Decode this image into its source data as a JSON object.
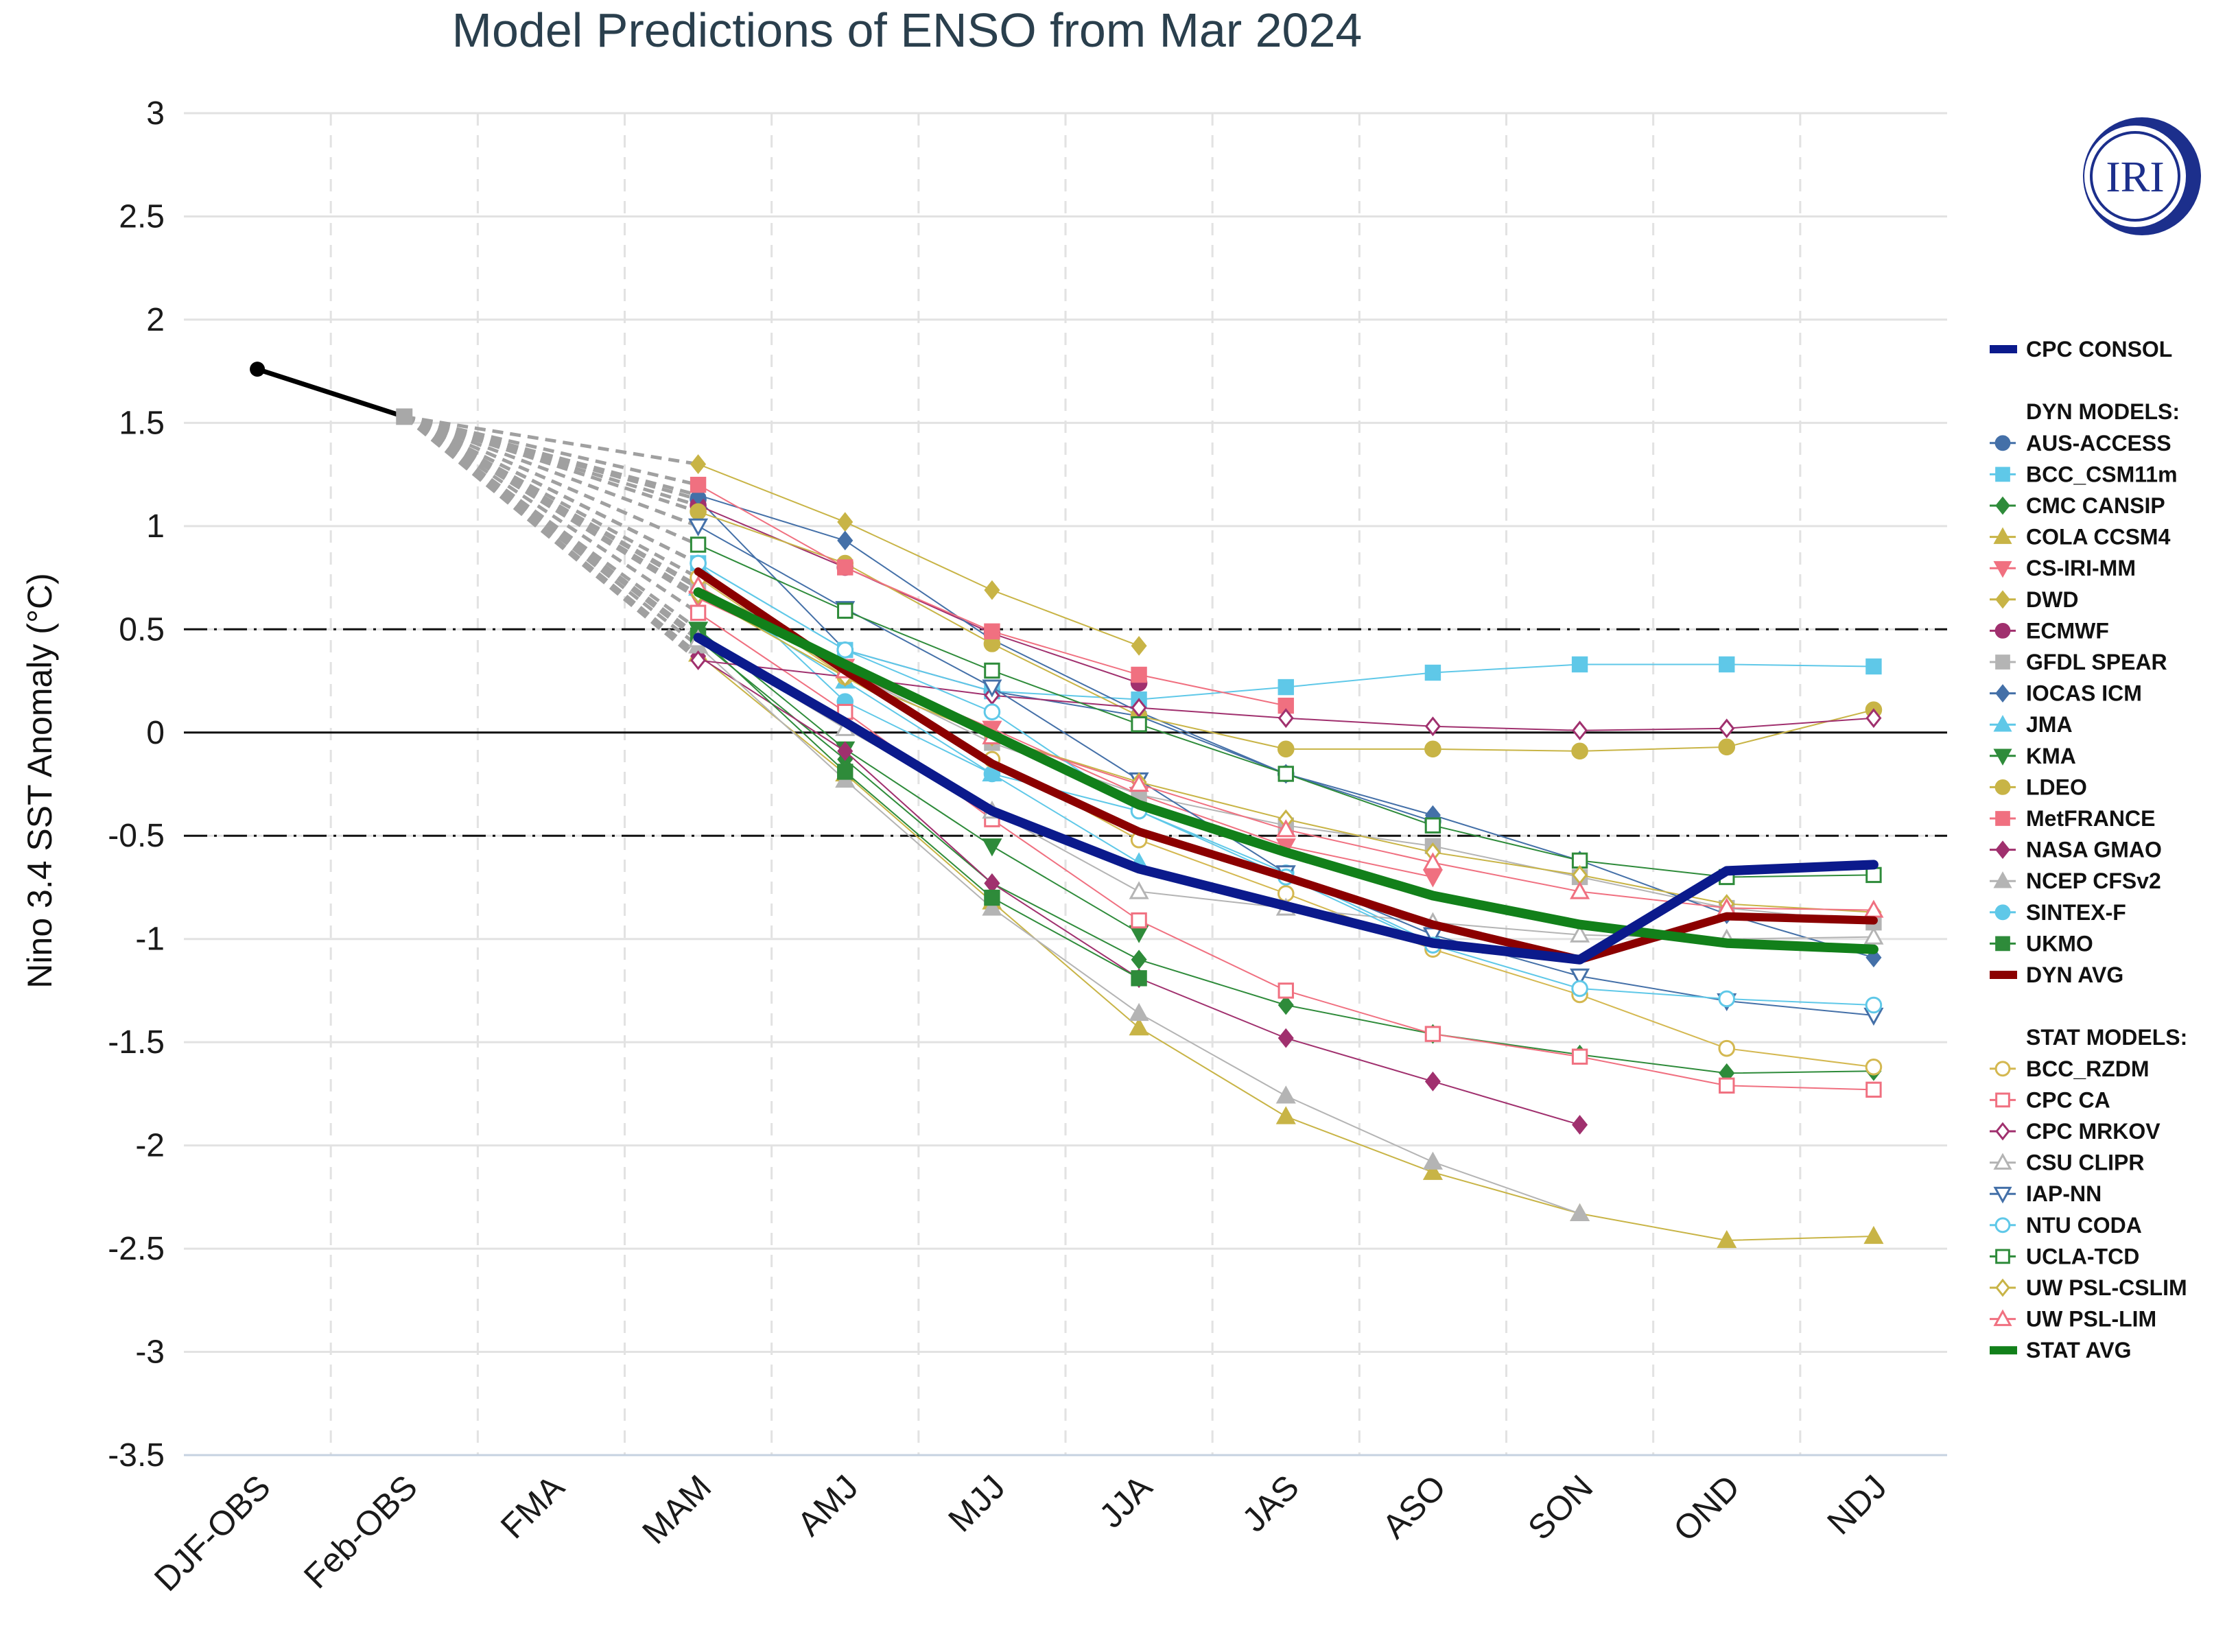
{
  "chart_data": {
    "type": "line",
    "title": "Model Predictions of ENSO from Mar 2024",
    "ylabel": "Nino 3.4 SST Anomaly (°C)",
    "xlabel": "",
    "categories": [
      "DJF-OBS",
      "Feb-OBS",
      "FMA",
      "MAM",
      "AMJ",
      "MJJ",
      "JJA",
      "JAS",
      "ASO",
      "SON",
      "OND",
      "NDJ"
    ],
    "ylim": [
      -3.5,
      3
    ],
    "yticks": [
      3,
      2.5,
      2,
      1.5,
      1,
      0.5,
      0,
      -0.5,
      -1,
      -1.5,
      -2,
      -2.5,
      -3,
      -3.5
    ],
    "ytick_labels": [
      "3",
      "2.5",
      "2",
      "1.5",
      "1",
      "0.5",
      "0",
      "-0.5",
      "-1",
      "-1.5",
      "-2",
      "-2.5",
      "-3",
      "-3.5"
    ],
    "reference_lines": [
      {
        "y": 0,
        "style": "solid"
      },
      {
        "y": 0.5,
        "style": "dash-dot"
      },
      {
        "y": -0.5,
        "style": "dash-dot"
      }
    ],
    "grid": true,
    "logo": "IRI",
    "observed": {
      "name": "Observed",
      "x_index": [
        0,
        1
      ],
      "values": [
        1.76,
        1.53
      ],
      "color": "#000000"
    },
    "legend_groups": [
      {
        "heading": "",
        "items": [
          "CPC CONSOL"
        ]
      },
      {
        "heading": "DYN MODELS:",
        "items": [
          "AUS-ACCESS",
          "BCC_CSM11m",
          "CMC CANSIP",
          "COLA CCSM4",
          "CS-IRI-MM",
          "DWD",
          "ECMWF",
          "GFDL SPEAR",
          "IOCAS ICM",
          "JMA",
          "KMA",
          "LDEO",
          "MetFRANCE",
          "NASA GMAO",
          "NCEP CFSv2",
          "SINTEX-F",
          "UKMO",
          "DYN AVG"
        ]
      },
      {
        "heading": "STAT MODELS:",
        "items": [
          "BCC_RZDM",
          "CPC CA",
          "CPC MRKOV",
          "CSU CLIPR",
          "IAP-NN",
          "NTU CODA",
          "UCLA-TCD",
          "UW PSL-CSLIM",
          "UW PSL-LIM",
          "STAT AVG"
        ]
      }
    ],
    "series": [
      {
        "name": "AUS-ACCESS",
        "group": "dyn",
        "color": "#4470a8",
        "marker": "circle",
        "filled": true,
        "width": 2,
        "values": [
          null,
          null,
          null,
          1.13,
          0.4,
          0.2,
          0.08,
          -0.2,
          -0.43,
          null,
          null,
          null
        ]
      },
      {
        "name": "BCC_CSM11m",
        "group": "dyn",
        "color": "#5fc8e8",
        "marker": "square",
        "filled": true,
        "width": 2,
        "values": [
          null,
          null,
          null,
          0.82,
          0.4,
          0.2,
          0.16,
          0.22,
          0.29,
          0.33,
          0.33,
          0.32
        ]
      },
      {
        "name": "CMC CANSIP",
        "group": "dyn",
        "color": "#2e8b3a",
        "marker": "diamond",
        "filled": true,
        "width": 2,
        "values": [
          null,
          null,
          null,
          0.45,
          -0.13,
          -0.73,
          -1.1,
          -1.32,
          -1.46,
          -1.56,
          -1.65,
          -1.64
        ]
      },
      {
        "name": "COLA CCSM4",
        "group": "dyn",
        "color": "#c8b446",
        "marker": "triangle",
        "filled": true,
        "width": 2,
        "values": [
          null,
          null,
          null,
          0.38,
          -0.2,
          -0.82,
          -1.43,
          -1.86,
          -2.13,
          -2.33,
          -2.46,
          -2.44
        ]
      },
      {
        "name": "CS-IRI-MM",
        "group": "dyn",
        "color": "#f07080",
        "marker": "triangle-down",
        "filled": true,
        "width": 2,
        "values": [
          null,
          null,
          null,
          0.65,
          0.32,
          0.02,
          -0.3,
          -0.55,
          -0.7,
          null,
          null,
          null
        ]
      },
      {
        "name": "DWD",
        "group": "dyn",
        "color": "#c8b446",
        "marker": "diamond",
        "filled": true,
        "width": 2,
        "values": [
          null,
          null,
          null,
          1.3,
          1.02,
          0.69,
          0.42,
          null,
          null,
          null,
          null,
          null
        ]
      },
      {
        "name": "ECMWF",
        "group": "dyn",
        "color": "#a0306e",
        "marker": "circle",
        "filled": true,
        "width": 2,
        "values": [
          null,
          null,
          null,
          1.1,
          0.8,
          0.48,
          0.24,
          null,
          null,
          null,
          null,
          null
        ]
      },
      {
        "name": "GFDL SPEAR",
        "group": "dyn",
        "color": "#b4b4b4",
        "marker": "square",
        "filled": true,
        "width": 2,
        "values": [
          null,
          null,
          null,
          0.7,
          0.3,
          -0.05,
          -0.3,
          -0.45,
          -0.55,
          -0.7,
          -0.85,
          -0.92
        ]
      },
      {
        "name": "IOCAS ICM",
        "group": "dyn",
        "color": "#4470a8",
        "marker": "diamond",
        "filled": true,
        "width": 2,
        "values": [
          null,
          null,
          null,
          1.15,
          0.93,
          0.45,
          0.1,
          -0.2,
          -0.4,
          -0.62,
          -0.88,
          -1.09
        ]
      },
      {
        "name": "JMA",
        "group": "dyn",
        "color": "#5fc8e8",
        "marker": "triangle",
        "filled": true,
        "width": 2,
        "values": [
          null,
          null,
          null,
          0.7,
          0.25,
          -0.2,
          -0.63,
          null,
          null,
          null,
          null,
          null
        ]
      },
      {
        "name": "KMA",
        "group": "dyn",
        "color": "#2e8b3a",
        "marker": "triangle-down",
        "filled": true,
        "width": 2,
        "values": [
          null,
          null,
          null,
          0.5,
          -0.08,
          -0.55,
          -0.97,
          null,
          null,
          null,
          null,
          null
        ]
      },
      {
        "name": "LDEO",
        "group": "dyn",
        "color": "#c8b446",
        "marker": "circle",
        "filled": true,
        "width": 2,
        "values": [
          null,
          null,
          null,
          1.07,
          0.82,
          0.43,
          0.08,
          -0.08,
          -0.08,
          -0.09,
          -0.07,
          0.11
        ]
      },
      {
        "name": "MetFRANCE",
        "group": "dyn",
        "color": "#f07080",
        "marker": "square",
        "filled": true,
        "width": 2,
        "values": [
          null,
          null,
          null,
          1.2,
          0.8,
          0.49,
          0.28,
          0.13,
          null,
          null,
          null,
          null
        ]
      },
      {
        "name": "NASA GMAO",
        "group": "dyn",
        "color": "#a0306e",
        "marker": "diamond",
        "filled": true,
        "width": 2,
        "values": [
          null,
          null,
          null,
          0.37,
          -0.09,
          -0.73,
          -1.19,
          -1.48,
          -1.69,
          -1.9,
          null,
          null
        ]
      },
      {
        "name": "NCEP CFSv2",
        "group": "dyn",
        "color": "#b4b4b4",
        "marker": "triangle",
        "filled": true,
        "width": 2,
        "values": [
          null,
          null,
          null,
          0.42,
          -0.23,
          -0.85,
          -1.36,
          -1.76,
          -2.08,
          -2.33,
          null,
          null
        ]
      },
      {
        "name": "SINTEX-F",
        "group": "dyn",
        "color": "#5fc8e8",
        "marker": "circle",
        "filled": true,
        "width": 2,
        "values": [
          null,
          null,
          null,
          0.82,
          0.15,
          -0.2,
          -0.38,
          -0.68,
          -1.02,
          null,
          null,
          null
        ]
      },
      {
        "name": "UKMO",
        "group": "dyn",
        "color": "#2e8b3a",
        "marker": "square",
        "filled": true,
        "width": 2,
        "values": [
          null,
          null,
          null,
          0.47,
          -0.19,
          -0.8,
          -1.19,
          null,
          null,
          null,
          null,
          null
        ]
      },
      {
        "name": "BCC_RZDM",
        "group": "stat",
        "color": "#d4b850",
        "marker": "circle",
        "filled": false,
        "width": 2,
        "values": [
          null,
          null,
          null,
          0.75,
          0.27,
          -0.13,
          -0.52,
          -0.78,
          -1.05,
          -1.27,
          -1.53,
          -1.62
        ]
      },
      {
        "name": "CPC CA",
        "group": "stat",
        "color": "#f07080",
        "marker": "square",
        "filled": false,
        "width": 2,
        "values": [
          null,
          null,
          null,
          0.58,
          0.1,
          -0.42,
          -0.91,
          -1.25,
          -1.46,
          -1.57,
          -1.71,
          -1.73
        ]
      },
      {
        "name": "CPC MRKOV",
        "group": "stat",
        "color": "#a0306e",
        "marker": "diamond",
        "filled": false,
        "width": 2,
        "values": [
          null,
          null,
          null,
          0.35,
          0.27,
          0.18,
          0.12,
          0.07,
          0.03,
          0.01,
          0.02,
          0.07
        ]
      },
      {
        "name": "CSU CLIPR",
        "group": "stat",
        "color": "#b4b4b4",
        "marker": "triangle",
        "filled": false,
        "width": 2,
        "values": [
          null,
          null,
          null,
          0.45,
          0.02,
          -0.38,
          -0.77,
          -0.85,
          -0.92,
          -0.98,
          -1.0,
          -0.99
        ]
      },
      {
        "name": "IAP-NN",
        "group": "stat",
        "color": "#4470a8",
        "marker": "triangle-down",
        "filled": false,
        "width": 2,
        "values": [
          null,
          null,
          null,
          1.0,
          0.6,
          0.22,
          -0.23,
          -0.68,
          -0.98,
          -1.18,
          -1.3,
          -1.37
        ]
      },
      {
        "name": "NTU CODA",
        "group": "stat",
        "color": "#5fc8e8",
        "marker": "circle",
        "filled": false,
        "width": 2,
        "values": [
          null,
          null,
          null,
          0.82,
          0.4,
          0.1,
          -0.38,
          -0.7,
          -1.03,
          -1.24,
          -1.29,
          -1.32
        ]
      },
      {
        "name": "UCLA-TCD",
        "group": "stat",
        "color": "#2e8b3a",
        "marker": "square",
        "filled": false,
        "width": 2,
        "values": [
          null,
          null,
          null,
          0.91,
          0.59,
          0.3,
          0.04,
          -0.2,
          -0.45,
          -0.62,
          -0.7,
          -0.69
        ]
      },
      {
        "name": "UW PSL-CSLIM",
        "group": "stat",
        "color": "#c8b446",
        "marker": "diamond",
        "filled": false,
        "width": 2,
        "values": [
          null,
          null,
          null,
          0.67,
          0.27,
          -0.02,
          -0.24,
          -0.42,
          -0.58,
          -0.69,
          -0.83,
          -0.87
        ]
      },
      {
        "name": "UW PSL-LIM",
        "group": "stat",
        "color": "#f07080",
        "marker": "triangle",
        "filled": false,
        "width": 2,
        "values": [
          null,
          null,
          null,
          0.71,
          0.3,
          -0.02,
          -0.25,
          -0.47,
          -0.63,
          -0.77,
          -0.85,
          -0.86
        ]
      },
      {
        "name": "DYN AVG",
        "group": "avg",
        "color": "#8b0000",
        "marker": "none",
        "filled": false,
        "width": 12,
        "values": [
          null,
          null,
          null,
          0.78,
          0.3,
          -0.15,
          -0.48,
          -0.7,
          -0.93,
          -1.1,
          -0.89,
          -0.91
        ]
      },
      {
        "name": "STAT AVG",
        "group": "avg",
        "color": "#12801a",
        "marker": "none",
        "filled": false,
        "width": 14,
        "values": [
          null,
          null,
          null,
          0.68,
          0.33,
          -0.01,
          -0.35,
          -0.58,
          -0.79,
          -0.93,
          -1.02,
          -1.05
        ]
      },
      {
        "name": "CPC CONSOL",
        "group": "avg",
        "color": "#0b1a8c",
        "marker": "none",
        "filled": false,
        "width": 14,
        "values": [
          null,
          null,
          null,
          0.46,
          0.05,
          -0.38,
          -0.66,
          -0.84,
          -1.02,
          -1.1,
          -0.67,
          -0.64
        ]
      }
    ]
  }
}
